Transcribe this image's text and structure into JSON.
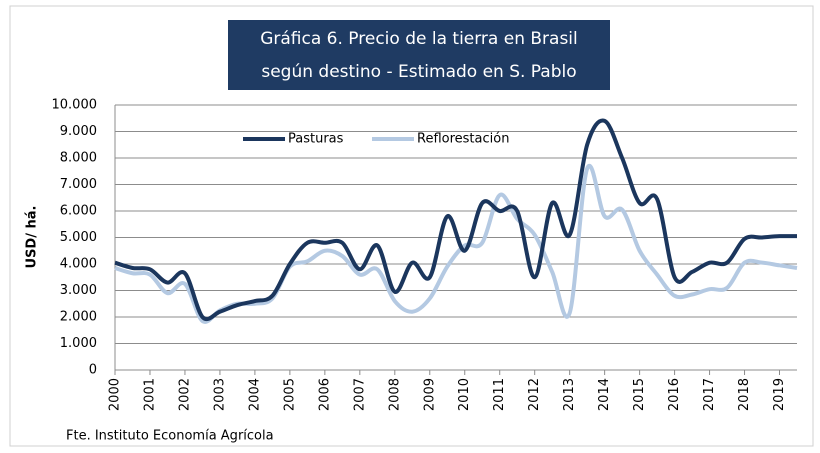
{
  "chart_data": {
    "type": "line",
    "title": [
      "Gráfica 6. Precio de la tierra en Brasil",
      "según destino - Estimado en S. Pablo"
    ],
    "y_label": "USD/ há.",
    "source": "Fte. Instituto Economía Agrícola",
    "x": [
      2000,
      2000.5,
      2001,
      2001.5,
      2002,
      2002.5,
      2003,
      2003.5,
      2004,
      2004.5,
      2005,
      2005.5,
      2006,
      2006.5,
      2007,
      2007.5,
      2008,
      2008.5,
      2009,
      2009.5,
      2010,
      2010.5,
      2011,
      2011.5,
      2012,
      2012.5,
      2013,
      2013.5,
      2014,
      2014.5,
      2015,
      2015.5,
      2016,
      2016.5,
      2017,
      2017.5,
      2018,
      2018.5,
      2019,
      2019.5
    ],
    "xlim": [
      2000,
      2019.5
    ],
    "xticks": [
      2000,
      2001,
      2002,
      2003,
      2004,
      2005,
      2006,
      2007,
      2008,
      2009,
      2010,
      2011,
      2012,
      2013,
      2014,
      2015,
      2016,
      2017,
      2018,
      2019
    ],
    "ylim": [
      0,
      10000
    ],
    "yticks": [
      0,
      {
        "value": 1000,
        "label": "1.000"
      },
      {
        "value": 2000,
        "label": "2.000"
      },
      {
        "value": 3000,
        "label": "3.000"
      },
      {
        "value": 4000,
        "label": "4.000"
      },
      {
        "value": 5000,
        "label": "5.000"
      },
      {
        "value": 6000,
        "label": "6.000"
      },
      {
        "value": 7000,
        "label": "7.000"
      },
      {
        "value": 8000,
        "label": "8.000"
      },
      {
        "value": 9000,
        "label": "9.000"
      },
      {
        "value": 10000,
        "label": "10.000"
      }
    ],
    "grid": true,
    "legend": "top",
    "series": [
      {
        "name": "Pasturas",
        "color": "#1b365d",
        "values": [
          4050,
          3850,
          3800,
          3300,
          3650,
          2000,
          2200,
          2450,
          2600,
          2800,
          4000,
          4800,
          4800,
          4800,
          3800,
          4700,
          2950,
          4050,
          3500,
          5800,
          4500,
          6300,
          6000,
          6000,
          3500,
          6300,
          5100,
          8500,
          9400,
          8000,
          6300,
          6450,
          3500,
          3700,
          4050,
          4050,
          4950,
          5000,
          5050,
          5050
        ]
      },
      {
        "name": "Reflorestación",
        "color": "#b4c9e2",
        "values": [
          3850,
          3650,
          3600,
          2900,
          3250,
          1850,
          2250,
          2500,
          2500,
          2700,
          3900,
          4100,
          4500,
          4300,
          3600,
          3800,
          2600,
          2200,
          2700,
          3900,
          4700,
          4800,
          6600,
          5700,
          5100,
          3700,
          2150,
          7600,
          5800,
          6050,
          4500,
          3600,
          2800,
          2850,
          3050,
          3100,
          4050,
          4050,
          3950,
          3850
        ]
      }
    ]
  }
}
